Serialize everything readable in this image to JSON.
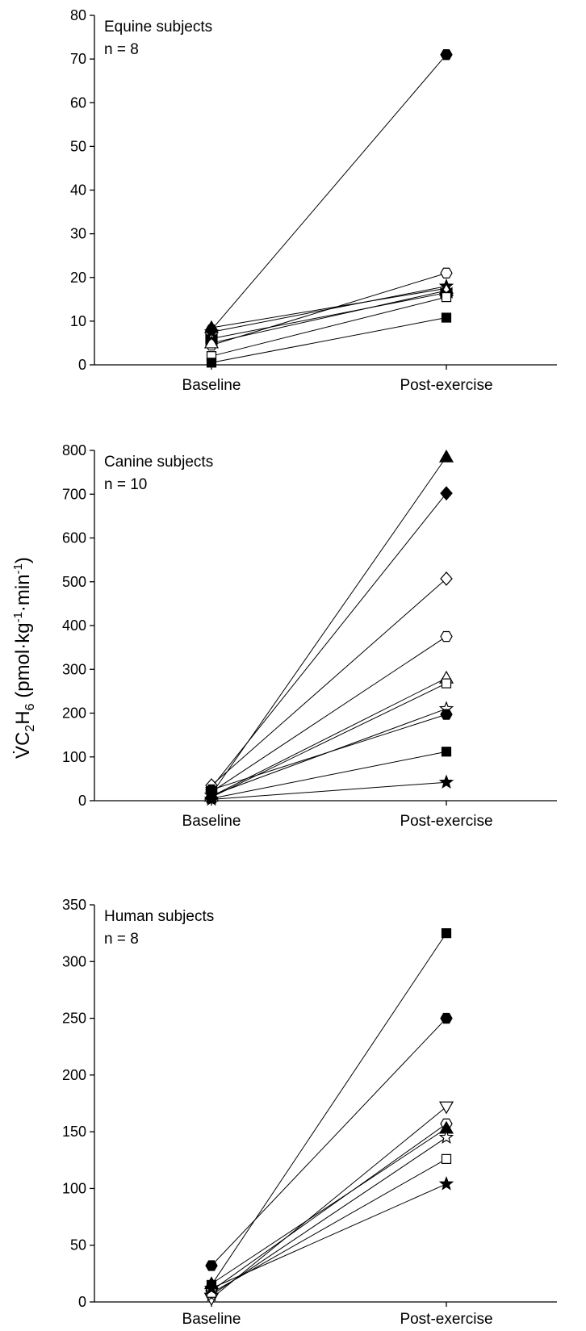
{
  "y_axis_label": {
    "main": "V̇C",
    "sub1": "2",
    "mid": "H",
    "sub2": "6",
    "units_open": " (pmol·kg",
    "sup1": "-1",
    "units_mid": "·min",
    "sup2": "-1",
    "units_close": ")"
  },
  "chart_data": [
    {
      "type": "line",
      "panel": "equine",
      "subtitle": "Equine subjects",
      "n_label": "n = 8",
      "categories": [
        "Baseline",
        "Post-exercise"
      ],
      "ylim": [
        0,
        80
      ],
      "yticks": [
        0,
        10,
        20,
        30,
        40,
        50,
        60,
        70,
        80
      ],
      "series": [
        {
          "marker": "hexagon",
          "fill": "filled",
          "values": [
            8,
            71
          ]
        },
        {
          "marker": "hexagon",
          "fill": "open",
          "values": [
            4.5,
            21
          ]
        },
        {
          "marker": "star",
          "fill": "filled",
          "values": [
            7.5,
            18
          ]
        },
        {
          "marker": "triangle-up",
          "fill": "filled",
          "values": [
            8.5,
            17.5
          ]
        },
        {
          "marker": "triangle-up",
          "fill": "open",
          "values": [
            5,
            17
          ]
        },
        {
          "marker": "bowtie",
          "fill": "filled",
          "values": [
            6,
            16.5
          ]
        },
        {
          "marker": "square",
          "fill": "open",
          "values": [
            2,
            15.5
          ]
        },
        {
          "marker": "square",
          "fill": "filled",
          "values": [
            0.5,
            10.8
          ]
        }
      ]
    },
    {
      "type": "line",
      "panel": "canine",
      "subtitle": "Canine subjects",
      "n_label": "n = 10",
      "categories": [
        "Baseline",
        "Post-exercise"
      ],
      "ylim": [
        0,
        800
      ],
      "yticks": [
        0,
        100,
        200,
        300,
        400,
        500,
        600,
        700,
        800
      ],
      "series": [
        {
          "marker": "triangle-up",
          "fill": "filled",
          "values": [
            15,
            785
          ]
        },
        {
          "marker": "diamond",
          "fill": "filled",
          "values": [
            30,
            702
          ]
        },
        {
          "marker": "diamond",
          "fill": "open",
          "values": [
            35,
            507
          ]
        },
        {
          "marker": "hexagon",
          "fill": "open",
          "values": [
            20,
            375
          ]
        },
        {
          "marker": "triangle-up",
          "fill": "open",
          "values": [
            10,
            280
          ]
        },
        {
          "marker": "square",
          "fill": "open",
          "values": [
            8,
            268
          ]
        },
        {
          "marker": "star",
          "fill": "open",
          "values": [
            12,
            210
          ]
        },
        {
          "marker": "hexagon",
          "fill": "filled",
          "values": [
            25,
            197
          ]
        },
        {
          "marker": "square",
          "fill": "filled",
          "values": [
            5,
            112
          ]
        },
        {
          "marker": "star",
          "fill": "filled",
          "values": [
            3,
            42
          ]
        }
      ]
    },
    {
      "type": "line",
      "panel": "human",
      "subtitle": "Human subjects",
      "n_label": "n = 8",
      "categories": [
        "Baseline",
        "Post-exercise"
      ],
      "ylim": [
        0,
        350
      ],
      "yticks": [
        0,
        50,
        100,
        150,
        200,
        250,
        300,
        350
      ],
      "series": [
        {
          "marker": "square",
          "fill": "filled",
          "values": [
            15,
            325
          ]
        },
        {
          "marker": "hexagon",
          "fill": "filled",
          "values": [
            32,
            250
          ]
        },
        {
          "marker": "triangle-down",
          "fill": "open",
          "values": [
            3,
            172
          ]
        },
        {
          "marker": "hexagon",
          "fill": "open",
          "values": [
            10,
            157
          ]
        },
        {
          "marker": "triangle-up",
          "fill": "filled",
          "values": [
            16,
            153
          ]
        },
        {
          "marker": "star",
          "fill": "open",
          "values": [
            6,
            145
          ]
        },
        {
          "marker": "square",
          "fill": "open",
          "values": [
            8,
            126
          ]
        },
        {
          "marker": "star",
          "fill": "filled",
          "values": [
            12,
            104
          ]
        }
      ]
    }
  ]
}
